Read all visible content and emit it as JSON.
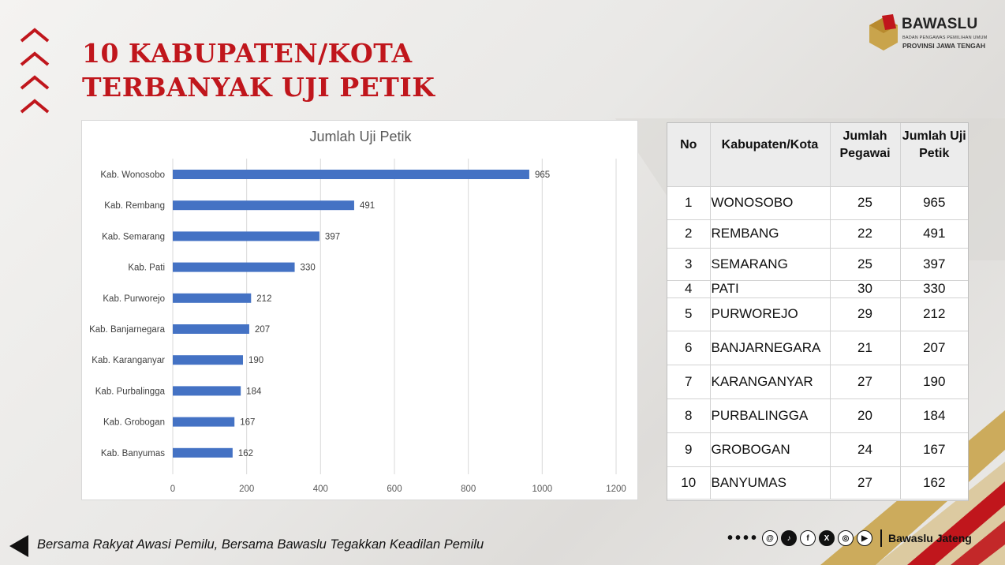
{
  "title": {
    "line1": "10 KABUPATEN/KOTA",
    "line2": "TERBANYAK UJI PETIK"
  },
  "logo": {
    "brand": "BAWASLU",
    "subtitle1": "BADAN PENGAWAS PEMILIHAN UMUM",
    "subtitle2": "PROVINSI JAWA TENGAH"
  },
  "chart_data": {
    "type": "bar",
    "orientation": "horizontal",
    "title": "Jumlah Uji Petik",
    "categories": [
      "Kab. Wonosobo",
      "Kab. Rembang",
      "Kab. Semarang",
      "Kab. Pati",
      "Kab. Purworejo",
      "Kab. Banjarnegara",
      "Kab. Karanganyar",
      "Kab. Purbalingga",
      "Kab. Grobogan",
      "Kab. Banyumas"
    ],
    "values": [
      965,
      491,
      397,
      330,
      212,
      207,
      190,
      184,
      167,
      162
    ],
    "xlim": [
      0,
      1200
    ],
    "xticks": [
      0,
      200,
      400,
      600,
      800,
      1000,
      1200
    ],
    "xlabel": "",
    "ylabel": "",
    "grid": true,
    "legend": "none",
    "bar_color": "#4472c4"
  },
  "table": {
    "headers": [
      "No",
      "Kabupaten/Kota",
      "Jumlah Pegawai",
      "Jumlah Uji Petik"
    ],
    "rows": [
      [
        "1",
        "WONOSOBO",
        "25",
        "965"
      ],
      [
        "2",
        "REMBANG",
        "22",
        "491"
      ],
      [
        "3",
        "SEMARANG",
        "25",
        "397"
      ],
      [
        "4",
        "PATI",
        "30",
        "330"
      ],
      [
        "5",
        "PURWOREJO",
        "29",
        "212"
      ],
      [
        "6",
        "BANJARNEGARA",
        "21",
        "207"
      ],
      [
        "7",
        "KARANGANYAR",
        "27",
        "190"
      ],
      [
        "8",
        "PURBALINGGA",
        "20",
        "184"
      ],
      [
        "9",
        "GROBOGAN",
        "24",
        "167"
      ],
      [
        "10",
        "BANYUMAS",
        "27",
        "162"
      ]
    ]
  },
  "footer": {
    "tagline": "Bersama Rakyat Awasi Pemilu, Bersama Bawaslu Tegakkan Keadilan Pemilu",
    "handle": "Bawaslu Jateng",
    "social_icons": [
      "threads-icon",
      "tiktok-icon",
      "facebook-icon",
      "x-icon",
      "instagram-icon",
      "youtube-icon"
    ]
  },
  "colors": {
    "accent": "#c0161c",
    "gold": "#c9a44c",
    "bar": "#4472c4"
  }
}
